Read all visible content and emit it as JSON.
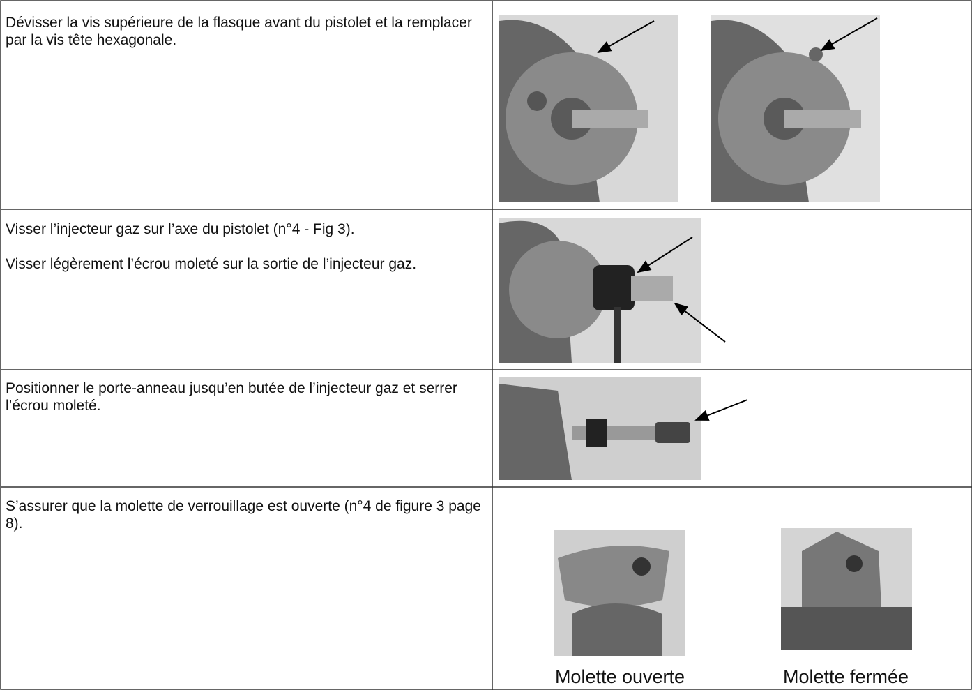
{
  "table": {
    "rows": [
      {
        "text": [
          "Dévisser la vis supérieure de la flasque avant du pistolet et la remplacer par la vis tête hexagonale."
        ]
      },
      {
        "text": [
          "Visser l’injecteur gaz sur l’axe du pistolet (n°4 - Fig 3).",
          "Visser légèrement l’écrou moleté sur la sortie de l’injecteur gaz."
        ]
      },
      {
        "text": [
          "Positionner le porte-anneau jusqu’en butée de l’injecteur gaz et serrer l’écrou moleté."
        ]
      },
      {
        "text": [
          "S’assurer que la molette de verrouillage est ouverte (n°4 de figure 3 page 8)."
        ],
        "captions": [
          "Molette ouverte",
          "Molette fermée"
        ]
      }
    ]
  }
}
